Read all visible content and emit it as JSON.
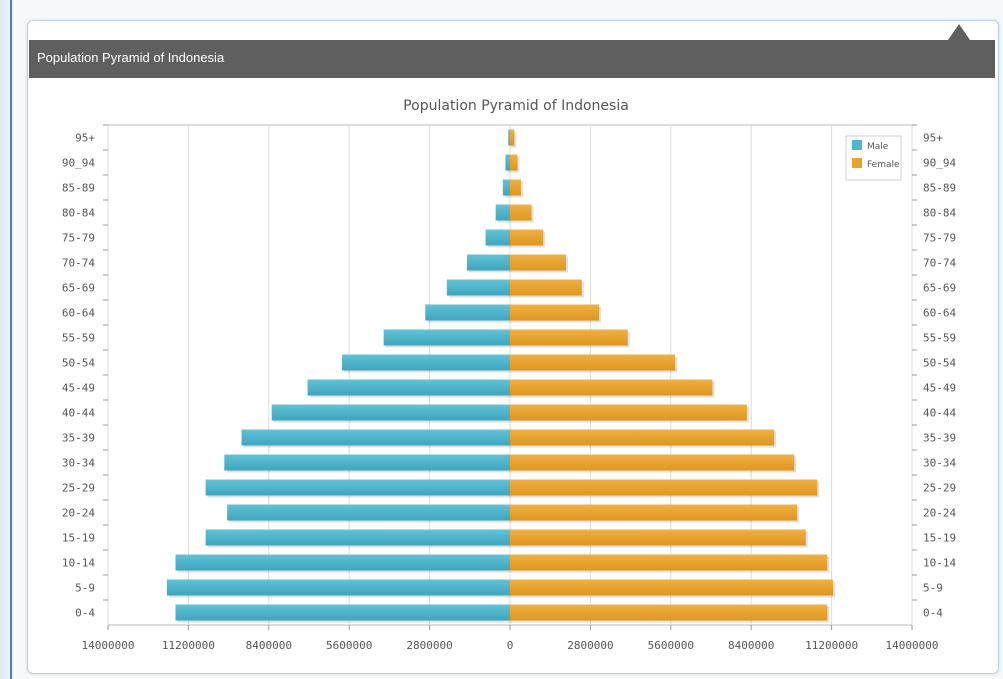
{
  "panel": {
    "title": "Population Pyramid of Indonesia"
  },
  "chart_data": {
    "type": "bar",
    "orientation": "horizontal-pyramid",
    "title": "Population Pyramid of Indonesia",
    "categories": [
      "95+",
      "90_94",
      "85-89",
      "80-84",
      "75-79",
      "70-74",
      "65-69",
      "60-64",
      "55-59",
      "50-54",
      "45-49",
      "40-44",
      "35-39",
      "30-34",
      "25-29",
      "20-24",
      "15-19",
      "10-14",
      "5-9",
      "0-4"
    ],
    "series": [
      {
        "name": "Male",
        "color": "#4db6cc",
        "values": [
          60000,
          160000,
          250000,
          500000,
          850000,
          1500000,
          2200000,
          2950000,
          4400000,
          5850000,
          7050000,
          8300000,
          9350000,
          9950000,
          10600000,
          9850000,
          10600000,
          11650000,
          11950000,
          11650000
        ]
      },
      {
        "name": "Female",
        "color": "#e8a22f",
        "values": [
          150000,
          260000,
          380000,
          750000,
          1150000,
          1950000,
          2500000,
          3100000,
          4100000,
          5750000,
          7050000,
          8250000,
          9200000,
          9900000,
          10700000,
          10000000,
          10300000,
          11050000,
          11250000,
          11050000
        ]
      }
    ],
    "x_ticks": [
      "14000000",
      "11200000",
      "8400000",
      "5600000",
      "2800000",
      "0",
      "2800000",
      "5600000",
      "8400000",
      "11200000",
      "14000000"
    ],
    "xlim": [
      -14000000,
      14000000
    ],
    "grid": true,
    "legend": "top-right"
  }
}
